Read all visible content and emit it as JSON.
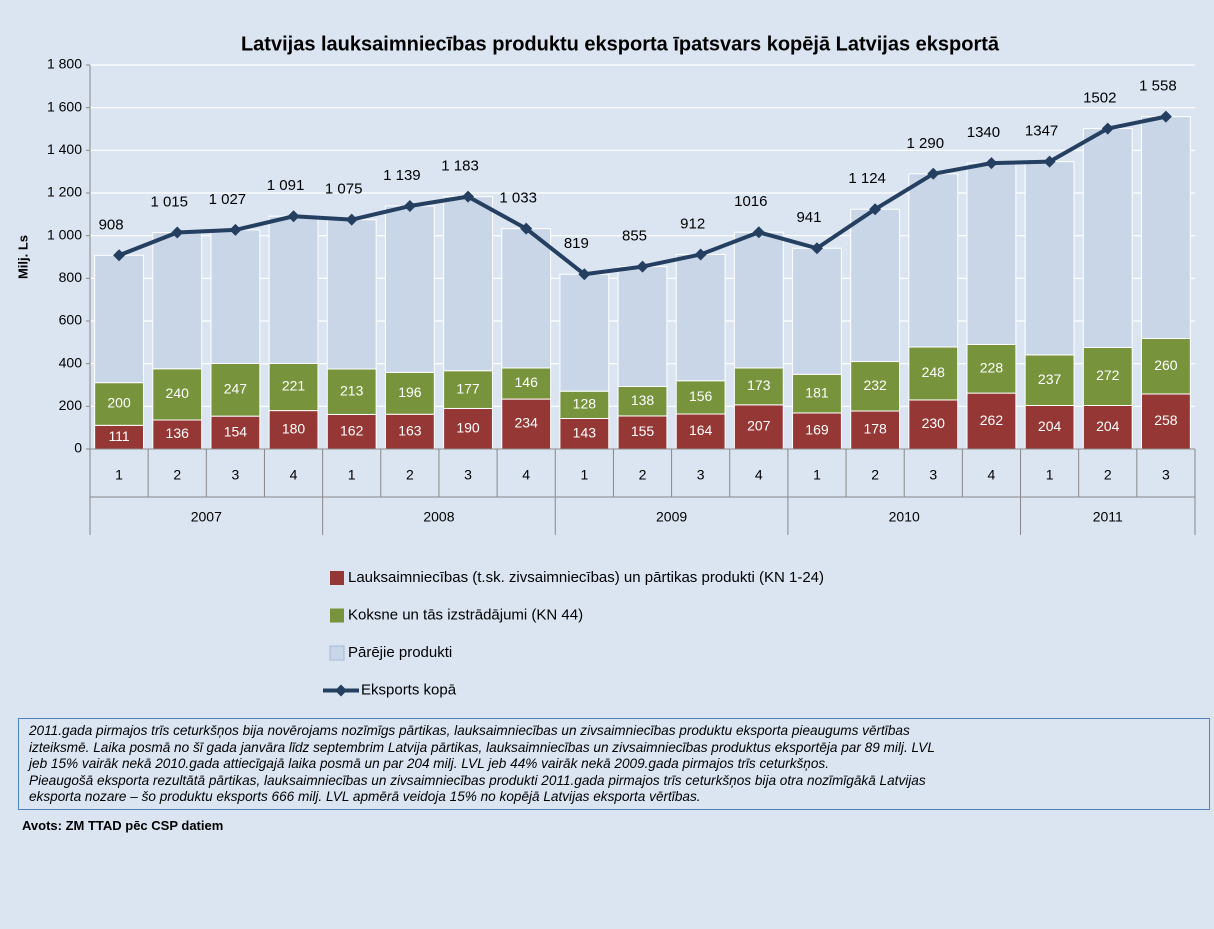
{
  "chart_data": {
    "type": "stacked_bar_line",
    "title": "Latvijas lauksaimniecības produktu eksporta īpatsvars kopējā Latvijas eksportā",
    "y_label": "Milj. Ls",
    "categories": [
      "1",
      "2",
      "3",
      "4",
      "1",
      "2",
      "3",
      "4",
      "1",
      "2",
      "3",
      "4",
      "1",
      "2",
      "3",
      "4",
      "1",
      "2",
      "3"
    ],
    "years": [
      "2007",
      "2007",
      "2007",
      "2007",
      "2008",
      "2008",
      "2008",
      "2008",
      "2009",
      "2009",
      "2009",
      "2009",
      "2010",
      "2010",
      "2010",
      "2010",
      "2011",
      "2011",
      "2011"
    ],
    "ylim": [
      0,
      1800
    ],
    "yticks": [
      0,
      200,
      400,
      600,
      800,
      {
        "value": 1000,
        "label": "1 000"
      },
      {
        "value": 1200,
        "label": "1 200"
      },
      {
        "value": 1400,
        "label": "1 400"
      },
      {
        "value": 1600,
        "label": "1 600"
      },
      {
        "value": 1800,
        "label": "1 800"
      }
    ],
    "grid": true,
    "series": [
      {
        "name": "Lauksaimniecības (t.sk. zivsaimniecības) un pārtikas produkti (KN 1-24)",
        "color": "#953735",
        "kind": "bar",
        "values": [
          111,
          136,
          154,
          180,
          162,
          163,
          190,
          234,
          143,
          155,
          164,
          207,
          169,
          178,
          230,
          262,
          204,
          204,
          258
        ]
      },
      {
        "name": "Koksne un tās izstrādājumi (KN 44)",
        "color": "#77933c",
        "kind": "bar",
        "values": [
          200,
          240,
          247,
          221,
          213,
          196,
          177,
          146,
          128,
          138,
          156,
          173,
          181,
          232,
          248,
          228,
          237,
          272,
          260
        ]
      },
      {
        "name": "Pārējie produkti",
        "color": "#c9d6e8",
        "kind": "bar",
        "values": [
          597,
          639,
          626,
          690,
          700,
          780,
          816,
          653,
          548,
          562,
          592,
          636,
          591,
          714,
          812,
          850,
          906,
          1026,
          1040
        ]
      },
      {
        "name": "Eksports kopā",
        "color": "#243f60",
        "kind": "line",
        "values": [
          908,
          1015,
          1027,
          1091,
          1075,
          1139,
          1183,
          1033,
          819,
          855,
          912,
          1016,
          941,
          1124,
          1290,
          1340,
          1347,
          1502,
          1558
        ],
        "value_labels": [
          "908",
          "1 015",
          "1 027",
          "1 091",
          "1 075",
          "1 139",
          "1 183",
          "1 033",
          "819",
          "855",
          "912",
          "1016",
          "941",
          "1 124",
          "1 290",
          "1340",
          "1347",
          "1502",
          "1 558"
        ]
      }
    ]
  },
  "note": {
    "lines": [
      "2011.gada pirmajos trīs ceturkšņos bija novērojams nozīmīgs pārtikas, lauksaimniecības un zivsaimniecības produktu eksporta pieaugums vērtības",
      "izteiksmē. Laika posmā no šī gada janvāra līdz septembrim Latvija pārtikas, lauksaimniecības un zivsaimniecības produktus eksportēja par 89 milj. LVL",
      "jeb 15% vairāk nekā 2010.gada attiecīgajā laika posmā un par 204 milj. LVL jeb 44% vairāk nekā 2009.gada pirmajos trīs ceturkšņos.",
      "Pieaugošā eksporta rezultātā pārtikas, lauksaimniecības un zivsaimniecības produkti 2011.gada pirmajos trīs ceturkšņos bija otra nozīmīgākā Latvijas",
      "eksporta nozare – šo produktu eksports 666 milj. LVL apmērā veidoja 15% no kopējā Latvijas eksporta vērtības."
    ]
  },
  "source": "Avots: ZM TTAD pēc CSP datiem"
}
